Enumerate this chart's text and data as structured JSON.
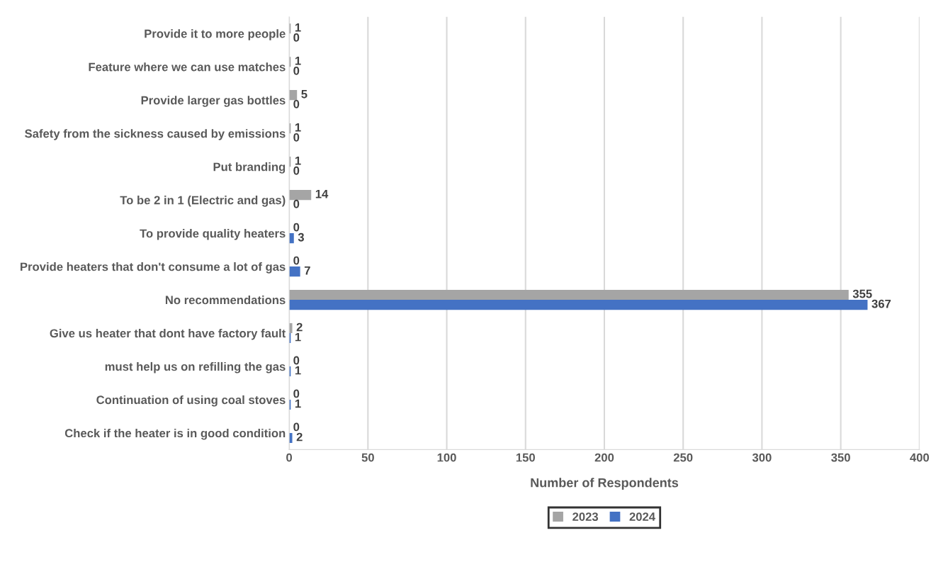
{
  "chart_data": {
    "type": "bar",
    "orientation": "horizontal",
    "xlabel": "Number of Respondents",
    "categories": [
      "Provide it to more people",
      "Feature where we can use matches",
      "Provide larger gas bottles",
      "Safety from the sickness caused by emissions",
      "Put branding",
      "To be 2 in 1 (Electric and gas)",
      "To provide quality heaters",
      "Provide heaters that don't consume a lot of gas",
      "No recommendations",
      "Give us heater that dont have factory fault",
      "must help us on refilling the gas",
      "Continuation of using coal stoves",
      "Check if the heater is in good condition"
    ],
    "series": [
      {
        "name": "2023",
        "color": "#a5a5a5",
        "values": [
          1,
          1,
          5,
          1,
          1,
          14,
          0,
          0,
          355,
          2,
          0,
          0,
          0
        ]
      },
      {
        "name": "2024",
        "color": "#4472c4",
        "values": [
          0,
          0,
          0,
          0,
          0,
          0,
          3,
          7,
          367,
          1,
          1,
          1,
          2
        ]
      }
    ],
    "xlim": [
      0,
      400
    ],
    "xticks": [
      0,
      50,
      100,
      150,
      200,
      250,
      300,
      350,
      400
    ],
    "grid": "x",
    "legend": "bottom",
    "data_labels": true
  }
}
